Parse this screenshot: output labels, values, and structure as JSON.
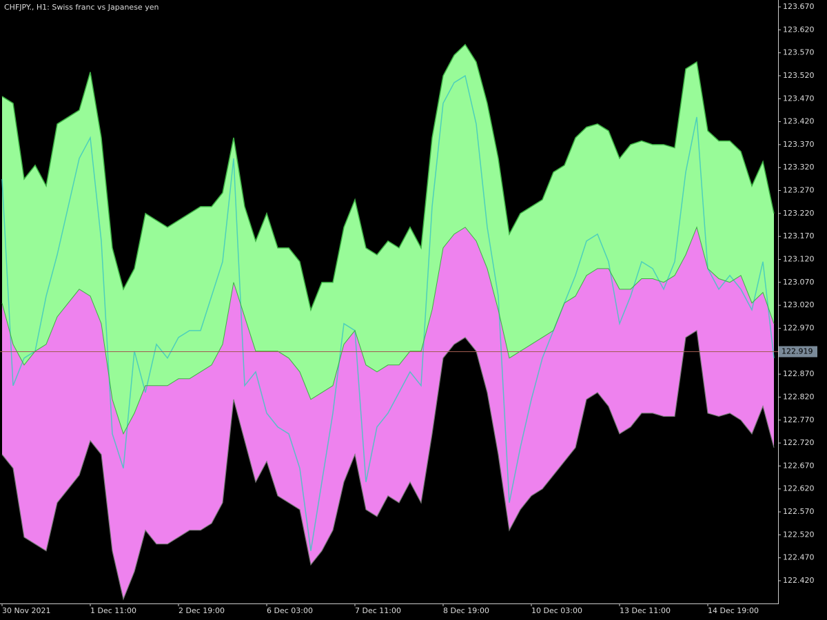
{
  "chart_data": {
    "type": "band",
    "title": "CHFJPY., H1:  Swiss franc vs Japanese yen",
    "categories": [
      "30 Nov 2021",
      null,
      null,
      null,
      null,
      null,
      null,
      null,
      "1 Dec 11:00",
      null,
      null,
      null,
      null,
      null,
      null,
      null,
      "2 Dec 19:00",
      null,
      null,
      null,
      null,
      null,
      null,
      null,
      "6 Dec 03:00",
      null,
      null,
      null,
      null,
      null,
      null,
      null,
      "7 Dec 11:00",
      null,
      null,
      null,
      null,
      null,
      null,
      null,
      "8 Dec 19:00",
      null,
      null,
      null,
      null,
      null,
      null,
      null,
      "10 Dec 03:00",
      null,
      null,
      null,
      null,
      null,
      null,
      null,
      "13 Dec 11:00",
      null,
      null,
      null,
      null,
      null,
      null,
      null,
      "14 Dec 19:00",
      null,
      null,
      null,
      null,
      null,
      null
    ],
    "series": [
      {
        "color": "#98fb98",
        "values": [
          123.475,
          123.46,
          123.295,
          123.325,
          123.28,
          123.415,
          123.43,
          123.445,
          123.528,
          123.385,
          123.145,
          123.055,
          123.1,
          123.22,
          123.205,
          123.19,
          123.205,
          123.22,
          123.235,
          123.235,
          123.265,
          123.385,
          123.235,
          123.16,
          123.22,
          123.145,
          123.145,
          123.115,
          123.01,
          123.07,
          123.07,
          123.19,
          123.25,
          123.145,
          123.13,
          123.16,
          123.145,
          123.19,
          123.145,
          123.385,
          123.52,
          123.565,
          123.588,
          123.55,
          123.46,
          123.34,
          123.175,
          123.22,
          123.235,
          123.25,
          123.31,
          123.325,
          123.385,
          123.408,
          123.415,
          123.4,
          123.34,
          123.37,
          123.378,
          123.37,
          123.37,
          123.363,
          123.535,
          123.55,
          123.4,
          123.378,
          123.378,
          123.355,
          123.28,
          123.333,
          123.22
        ]
      },
      {
        "color": "#ee82ee",
        "values": [
          123.025,
          122.935,
          122.89,
          122.92,
          122.935,
          122.995,
          123.025,
          123.055,
          123.04,
          122.98,
          122.815,
          122.74,
          122.785,
          122.845,
          122.845,
          122.845,
          122.86,
          122.86,
          122.875,
          122.89,
          122.935,
          123.07,
          122.995,
          122.92,
          122.92,
          122.92,
          122.905,
          122.875,
          122.815,
          122.83,
          122.845,
          122.935,
          122.965,
          122.89,
          122.875,
          122.89,
          122.89,
          122.92,
          122.92,
          123.01,
          123.145,
          123.175,
          123.19,
          123.16,
          123.1,
          123.01,
          122.905,
          122.92,
          122.935,
          122.95,
          122.965,
          123.025,
          123.04,
          123.085,
          123.1,
          123.1,
          123.055,
          123.055,
          123.078,
          123.078,
          123.07,
          123.085,
          123.13,
          123.19,
          123.1,
          123.078,
          123.07,
          123.085,
          123.025,
          123.048,
          122.98
        ]
      },
      {
        "color": "#ee82ee",
        "values": [
          122.695,
          122.665,
          122.515,
          122.5,
          122.485,
          122.59,
          122.62,
          122.65,
          122.725,
          122.695,
          122.485,
          122.38,
          122.44,
          122.53,
          122.5,
          122.5,
          122.515,
          122.53,
          122.53,
          122.545,
          122.59,
          122.815,
          122.725,
          122.635,
          122.68,
          122.605,
          122.59,
          122.575,
          122.455,
          122.485,
          122.53,
          122.635,
          122.695,
          122.575,
          122.56,
          122.605,
          122.59,
          122.635,
          122.59,
          122.74,
          122.905,
          122.935,
          122.95,
          122.92,
          122.83,
          122.695,
          122.53,
          122.575,
          122.605,
          122.62,
          122.65,
          122.68,
          122.71,
          122.815,
          122.83,
          122.8,
          122.74,
          122.755,
          122.785,
          122.785,
          122.778,
          122.778,
          122.95,
          122.965,
          122.785,
          122.778,
          122.785,
          122.77,
          122.74,
          122.8,
          122.71
        ]
      },
      {
        "color": "#40c8c0",
        "values": [
          123.295,
          122.845,
          122.905,
          122.92,
          123.04,
          123.13,
          123.235,
          123.34,
          123.385,
          123.16,
          122.74,
          122.665,
          122.92,
          122.83,
          122.935,
          122.905,
          122.95,
          122.965,
          122.965,
          123.04,
          123.115,
          123.34,
          122.845,
          122.875,
          122.785,
          122.755,
          122.74,
          122.665,
          122.485,
          122.635,
          122.785,
          122.98,
          122.965,
          122.635,
          122.755,
          122.785,
          122.83,
          122.875,
          122.845,
          123.235,
          123.46,
          123.505,
          123.52,
          123.415,
          123.19,
          123.04,
          122.59,
          122.71,
          122.815,
          122.905,
          122.965,
          123.025,
          123.085,
          123.16,
          123.175,
          123.115,
          122.98,
          123.04,
          123.115,
          123.1,
          123.055,
          123.115,
          123.31,
          123.43,
          123.1,
          123.055,
          123.085,
          123.055,
          123.01,
          123.115,
          122.905
        ]
      }
    ],
    "ylim": [
      122.3705,
      123.685
    ],
    "yticks": [
      {
        "value": 123.67,
        "label": "123.670"
      },
      {
        "value": 123.62,
        "label": "123.620"
      },
      {
        "value": 123.57,
        "label": "123.570"
      },
      {
        "value": 123.52,
        "label": "123.520"
      },
      {
        "value": 123.47,
        "label": "123.470"
      },
      {
        "value": 123.42,
        "label": "123.420"
      },
      {
        "value": 123.37,
        "label": "123.370"
      },
      {
        "value": 123.32,
        "label": "123.320"
      },
      {
        "value": 123.27,
        "label": "123.270"
      },
      {
        "value": 123.22,
        "label": "123.220"
      },
      {
        "value": 123.17,
        "label": "123.170"
      },
      {
        "value": 123.12,
        "label": "123.120"
      },
      {
        "value": 123.07,
        "label": "123.070"
      },
      {
        "value": 123.02,
        "label": "123.020"
      },
      {
        "value": 122.97,
        "label": "122.970"
      },
      {
        "value": 122.92,
        "label": "122.920"
      },
      {
        "value": 122.87,
        "label": "122.870"
      },
      {
        "value": 122.82,
        "label": "122.820"
      },
      {
        "value": 122.77,
        "label": "122.770"
      },
      {
        "value": 122.72,
        "label": "122.720"
      },
      {
        "value": 122.67,
        "label": "122.670"
      },
      {
        "value": 122.62,
        "label": "122.620"
      },
      {
        "value": 122.57,
        "label": "122.570"
      },
      {
        "value": 122.52,
        "label": "122.520"
      },
      {
        "value": 122.47,
        "label": "122.470"
      },
      {
        "value": 122.42,
        "label": "122.420"
      }
    ],
    "last_price": {
      "value": 122.919,
      "label": "122.919"
    },
    "border_color": "#3cb043"
  }
}
